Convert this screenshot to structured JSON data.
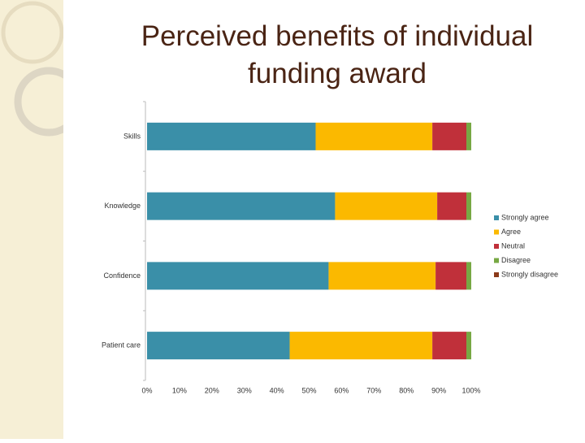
{
  "chart_data": {
    "type": "stacked-bar-horizontal",
    "title": "Perceived benefits of individual funding award",
    "categories": [
      "Skills",
      "Knowledge",
      "Confidence",
      "Patient care"
    ],
    "series": [
      {
        "name": "Strongly agree",
        "color": "#3a8fa8",
        "values": [
          52,
          58,
          56,
          44
        ]
      },
      {
        "name": "Agree",
        "color": "#fbb900",
        "values": [
          36,
          31.5,
          33,
          44
        ]
      },
      {
        "name": "Neutral",
        "color": "#c0303a",
        "values": [
          10.5,
          9,
          9.5,
          10.5
        ]
      },
      {
        "name": "Disagree",
        "color": "#77a843",
        "values": [
          1.5,
          1.5,
          1.5,
          1.5
        ]
      },
      {
        "name": "Strongly disagree",
        "color": "#8b3a1a",
        "values": [
          0,
          0,
          0,
          0
        ]
      }
    ],
    "xlim": [
      0,
      100
    ],
    "xticks": [
      {
        "value": 0,
        "label": "0%"
      },
      {
        "value": 10,
        "label": "10%"
      },
      {
        "value": 20,
        "label": "20%"
      },
      {
        "value": 30,
        "label": "30%"
      },
      {
        "value": 40,
        "label": "40%"
      },
      {
        "value": 50,
        "label": "50%"
      },
      {
        "value": 60,
        "label": "60%"
      },
      {
        "value": 70,
        "label": "70%"
      },
      {
        "value": 80,
        "label": "80%"
      },
      {
        "value": 90,
        "label": "90%"
      },
      {
        "value": 100,
        "label": "100%"
      }
    ],
    "grid": false,
    "legend": "right"
  }
}
